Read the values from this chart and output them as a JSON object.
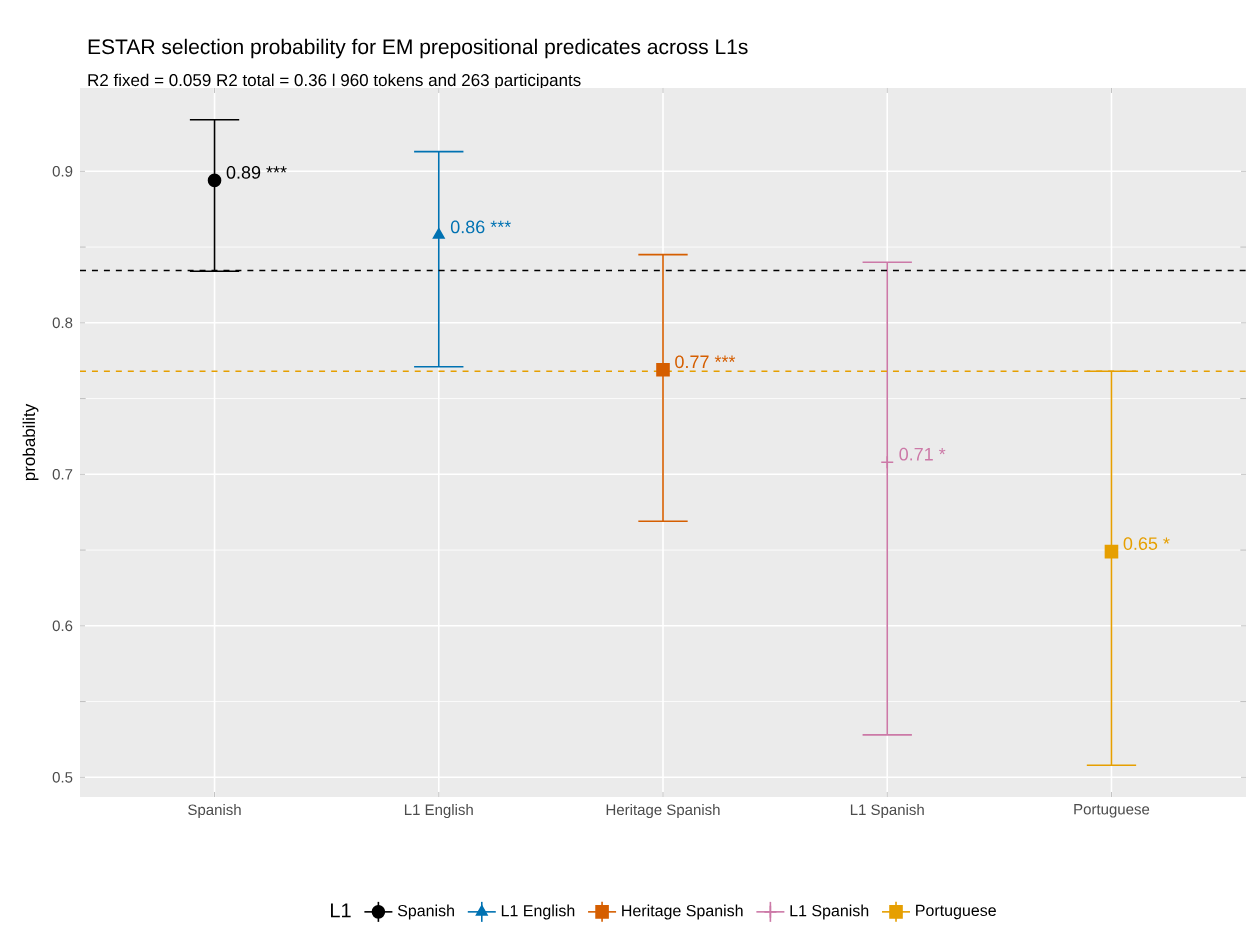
{
  "chart_data": {
    "type": "scatter",
    "title": "ESTAR selection probability for EM prepositional predicates across L1s",
    "subtitle": "R2 fixed = 0.059  R2 total = 0.36  l  960 tokens and 263 participants",
    "ylabel": "probability",
    "legend_title": "L1",
    "categories": [
      "Spanish",
      "L1 English",
      "Heritage Spanish",
      "L1 Spanish",
      "Portuguese"
    ],
    "series": [
      {
        "name": "Spanish",
        "color": "#000000",
        "marker": "circle",
        "values": [
          0.894,
          null,
          null,
          null,
          null
        ],
        "errors": [
          [
            0.834,
            0.934
          ],
          null,
          null,
          null,
          null
        ],
        "value_labels": [
          "0.89 ***",
          null,
          null,
          null,
          null
        ]
      },
      {
        "name": "L1 English",
        "color": "#0072b2",
        "marker": "triangle",
        "values": [
          null,
          0.858,
          null,
          null,
          null
        ],
        "errors": [
          null,
          [
            0.771,
            0.913
          ],
          null,
          null,
          null
        ],
        "value_labels": [
          null,
          "0.86 ***",
          null,
          null,
          null
        ]
      },
      {
        "name": "Heritage Spanish",
        "color": "#d55e00",
        "marker": "square",
        "values": [
          null,
          null,
          0.769,
          null,
          null
        ],
        "errors": [
          null,
          null,
          [
            0.669,
            0.845
          ],
          null,
          null
        ],
        "value_labels": [
          null,
          null,
          "0.77 ***",
          null,
          null
        ]
      },
      {
        "name": "L1 Spanish",
        "color": "#cc79a7",
        "marker": "cross",
        "values": [
          null,
          null,
          null,
          0.708,
          null
        ],
        "errors": [
          null,
          null,
          null,
          [
            0.528,
            0.84
          ],
          null
        ],
        "value_labels": [
          null,
          null,
          null,
          "0.71 *",
          null
        ]
      },
      {
        "name": "Portuguese",
        "color": "#e69f00",
        "marker": "square",
        "values": [
          null,
          null,
          null,
          null,
          0.649
        ],
        "errors": [
          null,
          null,
          null,
          null,
          [
            0.508,
            0.768
          ]
        ],
        "value_labels": [
          null,
          null,
          null,
          null,
          "0.65 *"
        ]
      }
    ],
    "ylim": [
      0.487,
      0.955
    ],
    "yticks": [
      0.5,
      0.6,
      0.7,
      0.8,
      0.9
    ],
    "grid": true,
    "legend": "bottom",
    "ref_lines": [
      {
        "axis": "y",
        "value": 0.8345,
        "color": "#000000",
        "line_style": "dashed"
      },
      {
        "axis": "y",
        "value": 0.768,
        "color": "#e69f00",
        "line_style": "dashed"
      }
    ]
  }
}
